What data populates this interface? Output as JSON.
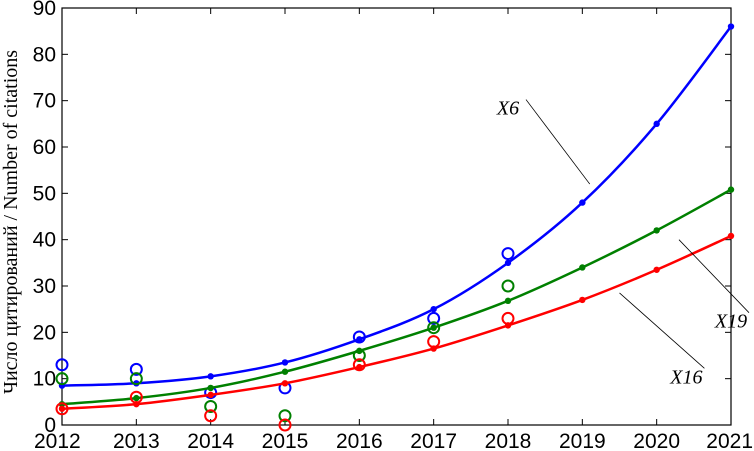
{
  "chart_data": {
    "type": "line",
    "title": "",
    "xlabel": "",
    "ylabel": "Число цитирований / Number of citations",
    "x": [
      2012,
      2013,
      2014,
      2015,
      2016,
      2017,
      2018,
      2019,
      2020,
      2021
    ],
    "xlim": [
      2012,
      2021
    ],
    "ylim": [
      0,
      90
    ],
    "yticks": [
      0,
      10,
      20,
      30,
      40,
      50,
      60,
      70,
      80,
      90
    ],
    "grid": false,
    "legend": "none",
    "series": [
      {
        "name": "X6",
        "color": "#0000ff",
        "fit": [
          8.5,
          9,
          10.5,
          13.5,
          18.5,
          25,
          35,
          48,
          65,
          86
        ],
        "observed": {
          "x": [
            2012,
            2013,
            2014,
            2015,
            2016,
            2017,
            2018
          ],
          "y": [
            13,
            12,
            7,
            8,
            19,
            23,
            37
          ]
        }
      },
      {
        "name": "X19",
        "color": "#008000",
        "fit": [
          4.5,
          5.8,
          8,
          11.5,
          16,
          21,
          26.8,
          34,
          42,
          50.8
        ],
        "observed": {
          "x": [
            2012,
            2013,
            2014,
            2015,
            2016,
            2017,
            2018
          ],
          "y": [
            10,
            10,
            4,
            2,
            15,
            21,
            30
          ]
        }
      },
      {
        "name": "X16",
        "color": "#ff0000",
        "fit": [
          3.5,
          4.5,
          6.5,
          9,
          12.5,
          16.5,
          21.5,
          27,
          33.5,
          40.8
        ],
        "observed": {
          "x": [
            2012,
            2013,
            2014,
            2015,
            2016,
            2017,
            2018
          ],
          "y": [
            3.5,
            6,
            2,
            0,
            13,
            18,
            23
          ]
        }
      }
    ],
    "annotations": [
      {
        "text": "X6",
        "series": "X6"
      },
      {
        "text": "X19",
        "series": "X19"
      },
      {
        "text": "X16",
        "series": "X16"
      }
    ]
  }
}
